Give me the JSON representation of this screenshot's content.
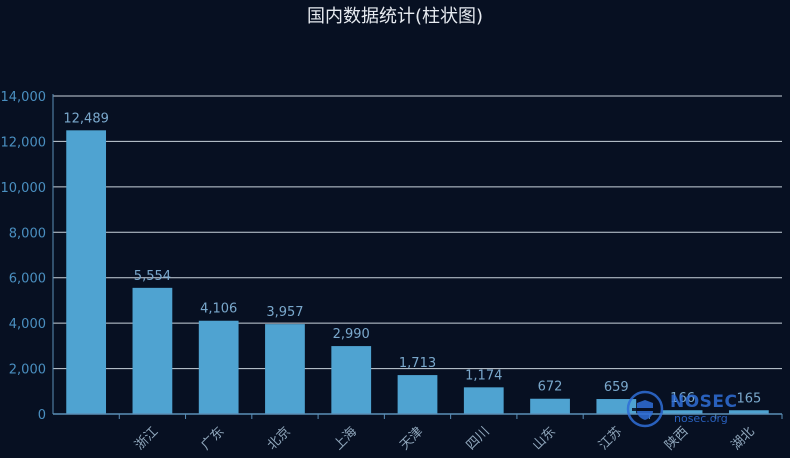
{
  "chart_data": {
    "type": "bar",
    "title": "国内数据统计(柱状图)",
    "categories": [
      "",
      "浙江",
      "广东",
      "北京",
      "上海",
      "天津",
      "四川",
      "山东",
      "江苏",
      "陕西",
      "湖北"
    ],
    "values": [
      12489,
      5554,
      4106,
      3957,
      2990,
      1713,
      1174,
      672,
      659,
      166,
      165
    ],
    "data_labels": [
      "12,489",
      "5,554",
      "4,106",
      "3,957",
      "2,990",
      "1,713",
      "1,174",
      "672",
      "659",
      "166",
      "165"
    ],
    "yticks": [
      "0",
      "2,000",
      "4,000",
      "6,000",
      "8,000",
      "10,000",
      "12,000",
      "14,000"
    ],
    "ylim": [
      0,
      14000
    ],
    "grid": true,
    "colors": {
      "bar": "#4fa3d1",
      "axis": "#5b8fb8",
      "grid": "#c8d2dc",
      "tick_text": "#4a8fc0",
      "data_label": "#7aa8cc",
      "category_text": "#8fa6bb",
      "background": "#071022"
    }
  },
  "watermark": {
    "name": "NOSEC",
    "site": "nosec.org",
    "icon": "nosec-shield-logo-icon"
  }
}
